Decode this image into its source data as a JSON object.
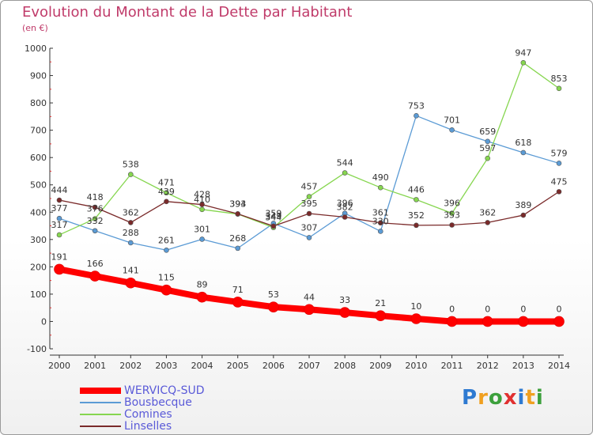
{
  "title": "Evolution du Montant de la Dette par Habitant",
  "subtitle": "(en €)",
  "logo": "Proxiti",
  "logo_colors": [
    "#2e7ad1",
    "#f0a020",
    "#3ca03c",
    "#e03030",
    "#2e7ad1",
    "#f0a020",
    "#3ca03c"
  ],
  "chart_data": {
    "type": "line",
    "x": [
      2000,
      2001,
      2002,
      2003,
      2004,
      2005,
      2006,
      2007,
      2008,
      2009,
      2010,
      2011,
      2012,
      2013,
      2014
    ],
    "ylim": [
      -100,
      1000
    ],
    "yticks": [
      -100,
      0,
      100,
      200,
      300,
      400,
      500,
      600,
      700,
      800,
      900,
      1000
    ],
    "grid": false,
    "legend": "bottom-left",
    "series": [
      {
        "name": "WERVICQ-SUD",
        "color": "#ff0000",
        "width": 8,
        "values": [
          191,
          166,
          141,
          115,
          89,
          71,
          53,
          44,
          33,
          21,
          10,
          0,
          0,
          0,
          0
        ]
      },
      {
        "name": "Bousbecque",
        "color": "#5b9bd5",
        "width": 1.3,
        "values": [
          377,
          332,
          288,
          261,
          301,
          268,
          359,
          307,
          396,
          330,
          753,
          701,
          659,
          618,
          579
        ]
      },
      {
        "name": "Comines",
        "color": "#86d64f",
        "width": 1.3,
        "values": [
          317,
          376,
          538,
          471,
          410,
          393,
          344,
          457,
          544,
          490,
          446,
          396,
          597,
          947,
          853
        ]
      },
      {
        "name": "Linselles",
        "color": "#7a2a2a",
        "width": 1.3,
        "values": [
          444,
          418,
          362,
          439,
          428,
          394,
          349,
          395,
          382,
          361,
          352,
          353,
          362,
          389,
          475
        ]
      }
    ]
  }
}
